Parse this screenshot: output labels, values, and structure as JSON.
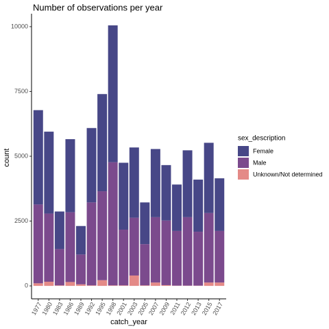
{
  "chart_data": {
    "type": "stacked_bar",
    "title": "Number of observations per year",
    "x_label": "catch_year",
    "y_label": "count",
    "legend_title": "sex_description",
    "categories": [
      "1977",
      "1980",
      "1983",
      "1986",
      "1989",
      "1992",
      "1995",
      "1998",
      "2001",
      "2003",
      "2005",
      "2007",
      "2009",
      "2011",
      "2012",
      "2013",
      "2015",
      "2017"
    ],
    "series": [
      {
        "name": "Unknown/Not determined",
        "color": "#e48a87",
        "values": [
          100,
          160,
          20,
          150,
          60,
          20,
          220,
          20,
          20,
          400,
          20,
          130,
          30,
          10,
          10,
          10,
          130,
          130
        ]
      },
      {
        "name": "Male",
        "color": "#7b4a8d",
        "values": [
          3040,
          2630,
          1400,
          2690,
          1150,
          3200,
          3430,
          4750,
          2150,
          2230,
          1590,
          2520,
          2490,
          2110,
          2640,
          2080,
          2680,
          1990
        ]
      },
      {
        "name": "Female",
        "color": "#474787",
        "values": [
          3640,
          3160,
          1450,
          2820,
          1100,
          2870,
          3750,
          5280,
          2580,
          2710,
          1610,
          2630,
          2140,
          1790,
          2580,
          2010,
          2710,
          2030
        ]
      }
    ],
    "legend_order": [
      2,
      1,
      0
    ],
    "ylim": [
      -500,
      10500
    ],
    "yticks": [
      0,
      2500,
      5000,
      7500,
      10000
    ],
    "legend_position": "right",
    "grid": false
  }
}
